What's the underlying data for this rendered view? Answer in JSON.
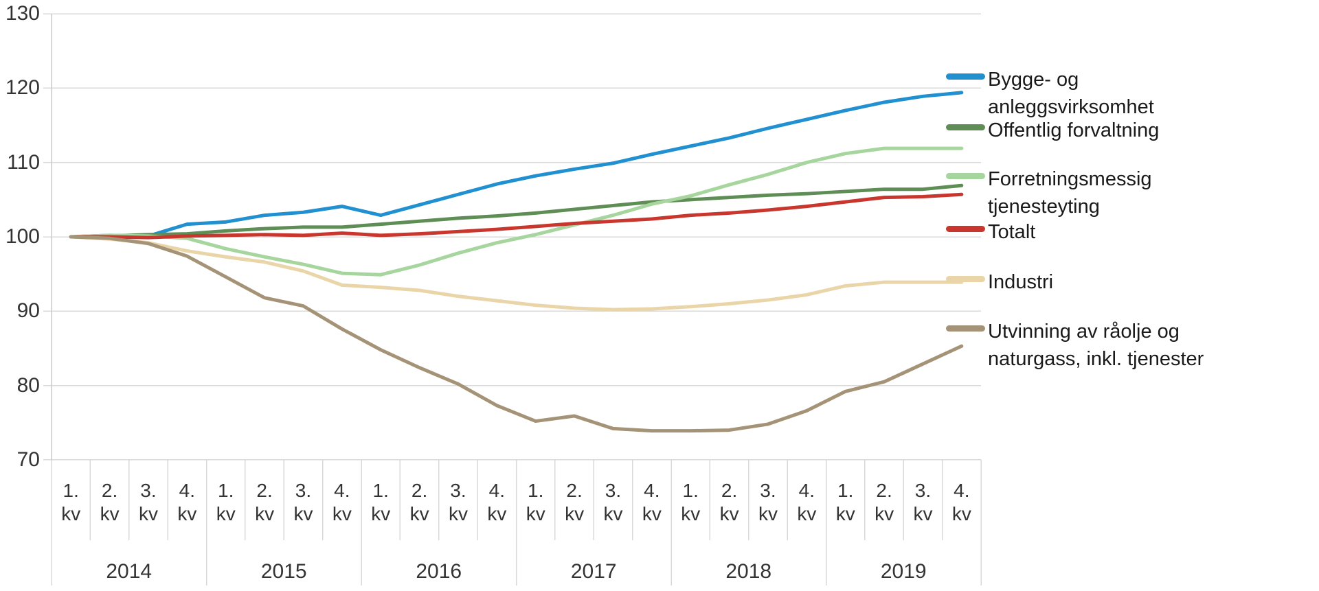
{
  "chart_data": {
    "type": "line",
    "title": "",
    "xlabel": "",
    "ylabel": "",
    "ylim": [
      70,
      130
    ],
    "y_ticks": [
      130,
      120,
      110,
      100,
      90,
      80,
      70
    ],
    "grid": true,
    "legend_position": "right",
    "x": {
      "years": [
        "2014",
        "2015",
        "2016",
        "2017",
        "2018",
        "2019"
      ],
      "quarter_line1": [
        "1.",
        "2.",
        "3.",
        "4."
      ],
      "quarter_line2": "kv"
    },
    "series": [
      {
        "name": "Bygge- og anleggsvirksomhet",
        "color": "#2090d0",
        "values": [
          100,
          100.2,
          100.1,
          101.7,
          102,
          102.9,
          103.3,
          104.1,
          102.9,
          104.3,
          105.7,
          107.1,
          108.2,
          109.1,
          109.9,
          111.1,
          112.2,
          113.3,
          114.6,
          115.8,
          117,
          118.1,
          118.9,
          119.4
        ]
      },
      {
        "name": "Offentlig forvaltning",
        "color": "#5e8e56",
        "values": [
          100,
          100.1,
          100.3,
          100.4,
          100.8,
          101.1,
          101.3,
          101.3,
          101.7,
          102.1,
          102.5,
          102.8,
          103.2,
          103.7,
          104.2,
          104.7,
          105,
          105.3,
          105.6,
          105.8,
          106.1,
          106.4,
          106.4,
          106.9
        ]
      },
      {
        "name": "Forretningsmessig tjenesteyting",
        "color": "#a6d59e",
        "values": [
          100,
          100.2,
          100.1,
          99.8,
          98.4,
          97.3,
          96.3,
          95.1,
          94.9,
          96.2,
          97.8,
          99.2,
          100.3,
          101.6,
          102.9,
          104.4,
          105.5,
          107,
          108.4,
          110,
          111.2,
          111.9,
          111.9,
          111.9
        ]
      },
      {
        "name": "Totalt",
        "color": "#c9362e",
        "values": [
          100,
          100,
          99.9,
          100.1,
          100.2,
          100.3,
          100.2,
          100.5,
          100.2,
          100.4,
          100.7,
          101,
          101.4,
          101.8,
          102.1,
          102.4,
          102.9,
          103.2,
          103.6,
          104.1,
          104.7,
          105.3,
          105.4,
          105.7
        ]
      },
      {
        "name": "Industri",
        "color": "#ead5a9",
        "values": [
          100,
          99.7,
          99.2,
          98.1,
          97.3,
          96.6,
          95.4,
          93.5,
          93.2,
          92.8,
          92,
          91.4,
          90.8,
          90.4,
          90.2,
          90.3,
          90.6,
          91,
          91.5,
          92.2,
          93.4,
          93.9,
          93.9,
          93.9
        ]
      },
      {
        "name": "Utvinning av råolje og naturgass, inkl. tjenester",
        "color": "#a59377",
        "values": [
          100,
          99.8,
          99.1,
          97.4,
          94.6,
          91.8,
          90.7,
          87.6,
          84.8,
          82.4,
          80.2,
          77.3,
          75.2,
          75.9,
          74.2,
          73.9,
          73.9,
          74,
          74.8,
          76.6,
          79.2,
          80.5,
          82.9,
          85.3
        ]
      }
    ]
  },
  "legend": {
    "items": [
      {
        "lines": [
          "Bygge- og",
          "anleggsvirksomhet"
        ]
      },
      {
        "lines": [
          "Offentlig forvaltning"
        ]
      },
      {
        "lines": [
          "Forretningsmessig",
          "tjenesteyting"
        ]
      },
      {
        "lines": [
          "Totalt"
        ]
      },
      {
        "lines": [
          "Industri"
        ]
      },
      {
        "lines": [
          "Utvinning av råolje og",
          "naturgass, inkl. tjenester"
        ]
      }
    ]
  },
  "colors": {
    "grid": "#d9d9d9",
    "axis": "#c9c9c9",
    "text": "#333333"
  }
}
